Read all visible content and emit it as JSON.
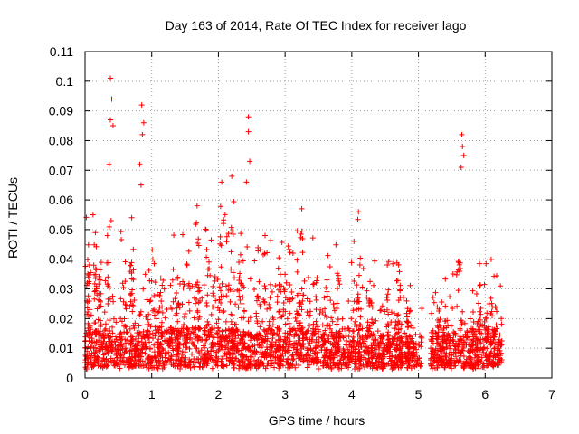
{
  "chart_data": {
    "type": "scatter",
    "title": "Day 163 of 2014, Rate Of TEC Index for receiver lago",
    "xlabel": "GPS time / hours",
    "ylabel": "ROTI / TECUs",
    "xlim": [
      0,
      7
    ],
    "ylim": [
      0,
      0.11
    ],
    "x_ticks": [
      0,
      1,
      2,
      3,
      4,
      5,
      6,
      7
    ],
    "x_tick_labels": [
      "0",
      "1",
      "2",
      "3",
      "4",
      "5",
      "6",
      "7"
    ],
    "y_ticks": [
      0,
      0.01,
      0.02,
      0.03,
      0.04,
      0.05,
      0.06,
      0.07,
      0.08,
      0.09,
      0.1,
      0.11
    ],
    "y_tick_labels": [
      "0",
      "0.01",
      "0.02",
      "0.03",
      "0.04",
      "0.05",
      "0.06",
      "0.07",
      "0.08",
      "0.09",
      "0.1",
      "0.11"
    ],
    "grid": true,
    "marker": "+",
    "marker_color": "#ff0000",
    "notable_peaks": [
      {
        "x": 0.38,
        "y": 0.101
      },
      {
        "x": 0.4,
        "y": 0.094
      },
      {
        "x": 0.38,
        "y": 0.087
      },
      {
        "x": 0.42,
        "y": 0.085
      },
      {
        "x": 0.36,
        "y": 0.072
      },
      {
        "x": 0.85,
        "y": 0.092
      },
      {
        "x": 0.88,
        "y": 0.086
      },
      {
        "x": 0.86,
        "y": 0.082
      },
      {
        "x": 0.82,
        "y": 0.072
      },
      {
        "x": 0.84,
        "y": 0.065
      },
      {
        "x": 2.45,
        "y": 0.088
      },
      {
        "x": 2.45,
        "y": 0.083
      },
      {
        "x": 2.47,
        "y": 0.073
      },
      {
        "x": 2.42,
        "y": 0.066
      },
      {
        "x": 2.05,
        "y": 0.066
      },
      {
        "x": 2.2,
        "y": 0.068
      },
      {
        "x": 5.65,
        "y": 0.082
      },
      {
        "x": 5.66,
        "y": 0.078
      },
      {
        "x": 5.68,
        "y": 0.075
      },
      {
        "x": 5.64,
        "y": 0.071
      },
      {
        "x": 4.1,
        "y": 0.056
      },
      {
        "x": 3.25,
        "y": 0.057
      },
      {
        "x": 1.68,
        "y": 0.058
      },
      {
        "x": 0.12,
        "y": 0.055
      },
      {
        "x": 0.7,
        "y": 0.054
      },
      {
        "x": 2.7,
        "y": 0.048
      }
    ],
    "series_envelope": {
      "description": "dense ROTI scatter, approx baseline and spread per time window",
      "x_start": 0.0,
      "x_end": 6.25,
      "gap": [
        5.05,
        5.18
      ],
      "profile": [
        {
          "x": 0.0,
          "base": 0.009,
          "spread": 0.035
        },
        {
          "x": 0.5,
          "base": 0.009,
          "spread": 0.03
        },
        {
          "x": 1.0,
          "base": 0.009,
          "spread": 0.025
        },
        {
          "x": 1.5,
          "base": 0.01,
          "spread": 0.03
        },
        {
          "x": 2.0,
          "base": 0.01,
          "spread": 0.035
        },
        {
          "x": 2.5,
          "base": 0.009,
          "spread": 0.03
        },
        {
          "x": 3.0,
          "base": 0.01,
          "spread": 0.03
        },
        {
          "x": 3.5,
          "base": 0.009,
          "spread": 0.025
        },
        {
          "x": 4.0,
          "base": 0.008,
          "spread": 0.025
        },
        {
          "x": 4.5,
          "base": 0.008,
          "spread": 0.02
        },
        {
          "x": 5.0,
          "base": 0.008,
          "spread": 0.012
        },
        {
          "x": 5.5,
          "base": 0.009,
          "spread": 0.015
        },
        {
          "x": 6.0,
          "base": 0.01,
          "spread": 0.022
        },
        {
          "x": 6.25,
          "base": 0.009,
          "spread": 0.02
        }
      ],
      "approx_point_count": 2600
    }
  }
}
